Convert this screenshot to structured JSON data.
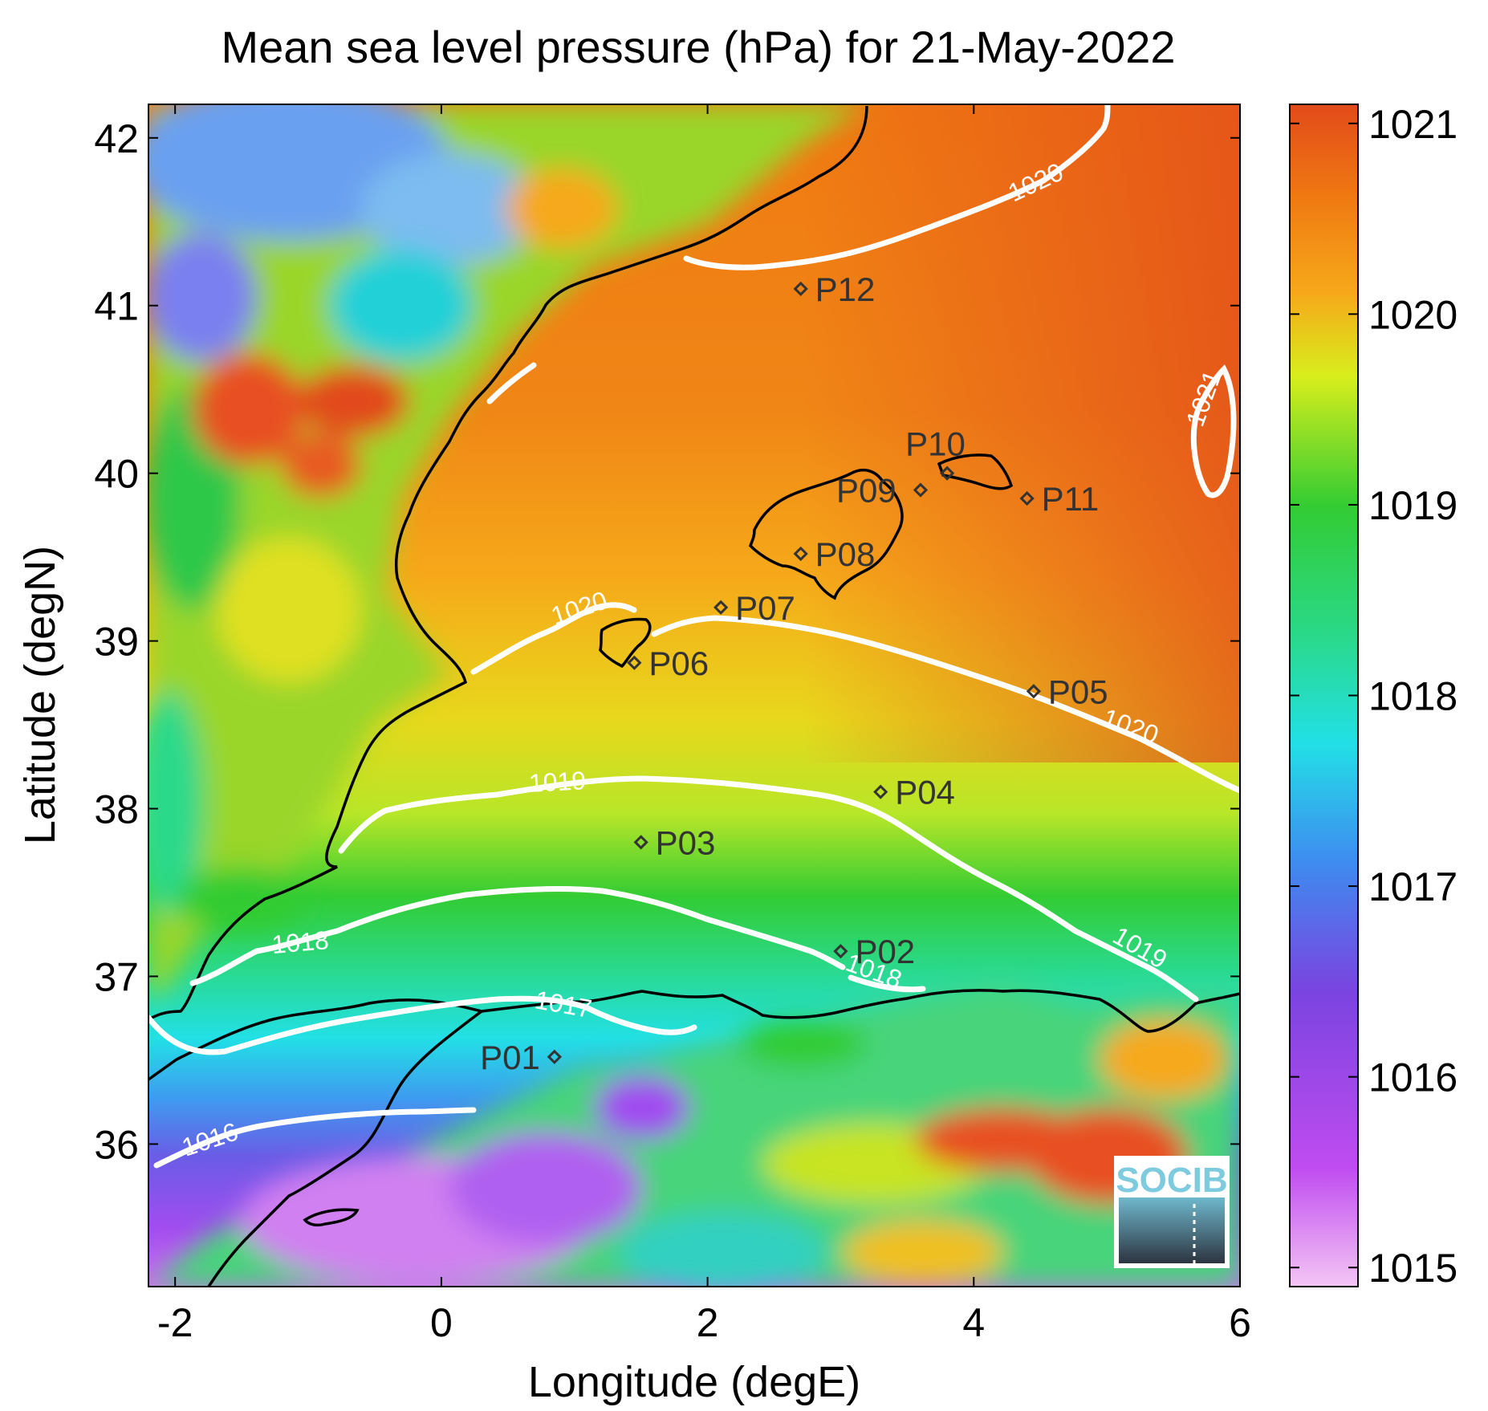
{
  "map": {
    "title": "Mean sea level pressure (hPa) for 21-May-2022",
    "xlabel": "Longitude (degE)",
    "ylabel": "Latitude (degN)",
    "x_range": [
      -2.2,
      6.0
    ],
    "y_range": [
      35.15,
      42.2
    ],
    "x_ticks": [
      {
        "value": -2,
        "label": "-2"
      },
      {
        "value": 0,
        "label": "0"
      },
      {
        "value": 2,
        "label": "2"
      },
      {
        "value": 4,
        "label": "4"
      },
      {
        "value": 6,
        "label": "6"
      }
    ],
    "y_ticks": [
      {
        "value": 36,
        "label": "36"
      },
      {
        "value": 37,
        "label": "37"
      },
      {
        "value": 38,
        "label": "38"
      },
      {
        "value": 39,
        "label": "39"
      },
      {
        "value": 40,
        "label": "40"
      },
      {
        "value": 41,
        "label": "41"
      },
      {
        "value": 42,
        "label": "42"
      }
    ],
    "colorbar": {
      "range": [
        1014.9,
        1021.1
      ],
      "ticks": [
        {
          "value": 1015,
          "label": "1015"
        },
        {
          "value": 1016,
          "label": "1016"
        },
        {
          "value": 1017,
          "label": "1017"
        },
        {
          "value": 1018,
          "label": "1018"
        },
        {
          "value": 1019,
          "label": "1019"
        },
        {
          "value": 1020,
          "label": "1020"
        },
        {
          "value": 1021,
          "label": "1021"
        }
      ],
      "colors": [
        "#f4c6f4",
        "#c04cf0",
        "#7a44e0",
        "#3e8cf0",
        "#22e0e6",
        "#2ad98a",
        "#33cc33",
        "#d8ee1c",
        "#f6a91a",
        "#f07a12",
        "#e24a1a"
      ]
    },
    "contours": [
      {
        "level": "1016",
        "label": "1016"
      },
      {
        "level": "1017",
        "label": "1017"
      },
      {
        "level": "1018",
        "label": "1018"
      },
      {
        "level": "1018",
        "label": "1018"
      },
      {
        "level": "1019",
        "label": "1019"
      },
      {
        "level": "1019",
        "label": "1019"
      },
      {
        "level": "1020",
        "label": "1020"
      },
      {
        "level": "1020",
        "label": "1020"
      },
      {
        "level": "1020",
        "label": "1020"
      },
      {
        "level": "1021",
        "label": "1021"
      }
    ],
    "stations": [
      {
        "id": "P01",
        "lon": 0.85,
        "lat": 36.52
      },
      {
        "id": "P02",
        "lon": 3.0,
        "lat": 37.15
      },
      {
        "id": "P03",
        "lon": 1.5,
        "lat": 37.8
      },
      {
        "id": "P04",
        "lon": 3.3,
        "lat": 38.1
      },
      {
        "id": "P05",
        "lon": 4.45,
        "lat": 38.7
      },
      {
        "id": "P06",
        "lon": 1.45,
        "lat": 38.87
      },
      {
        "id": "P07",
        "lon": 2.1,
        "lat": 39.2
      },
      {
        "id": "P08",
        "lon": 2.7,
        "lat": 39.52
      },
      {
        "id": "P09",
        "lon": 3.6,
        "lat": 39.9
      },
      {
        "id": "P10",
        "lon": 3.8,
        "lat": 40.0
      },
      {
        "id": "P11",
        "lon": 4.4,
        "lat": 39.85
      },
      {
        "id": "P12",
        "lon": 2.7,
        "lat": 41.1
      }
    ],
    "logo": "SOCIB"
  }
}
